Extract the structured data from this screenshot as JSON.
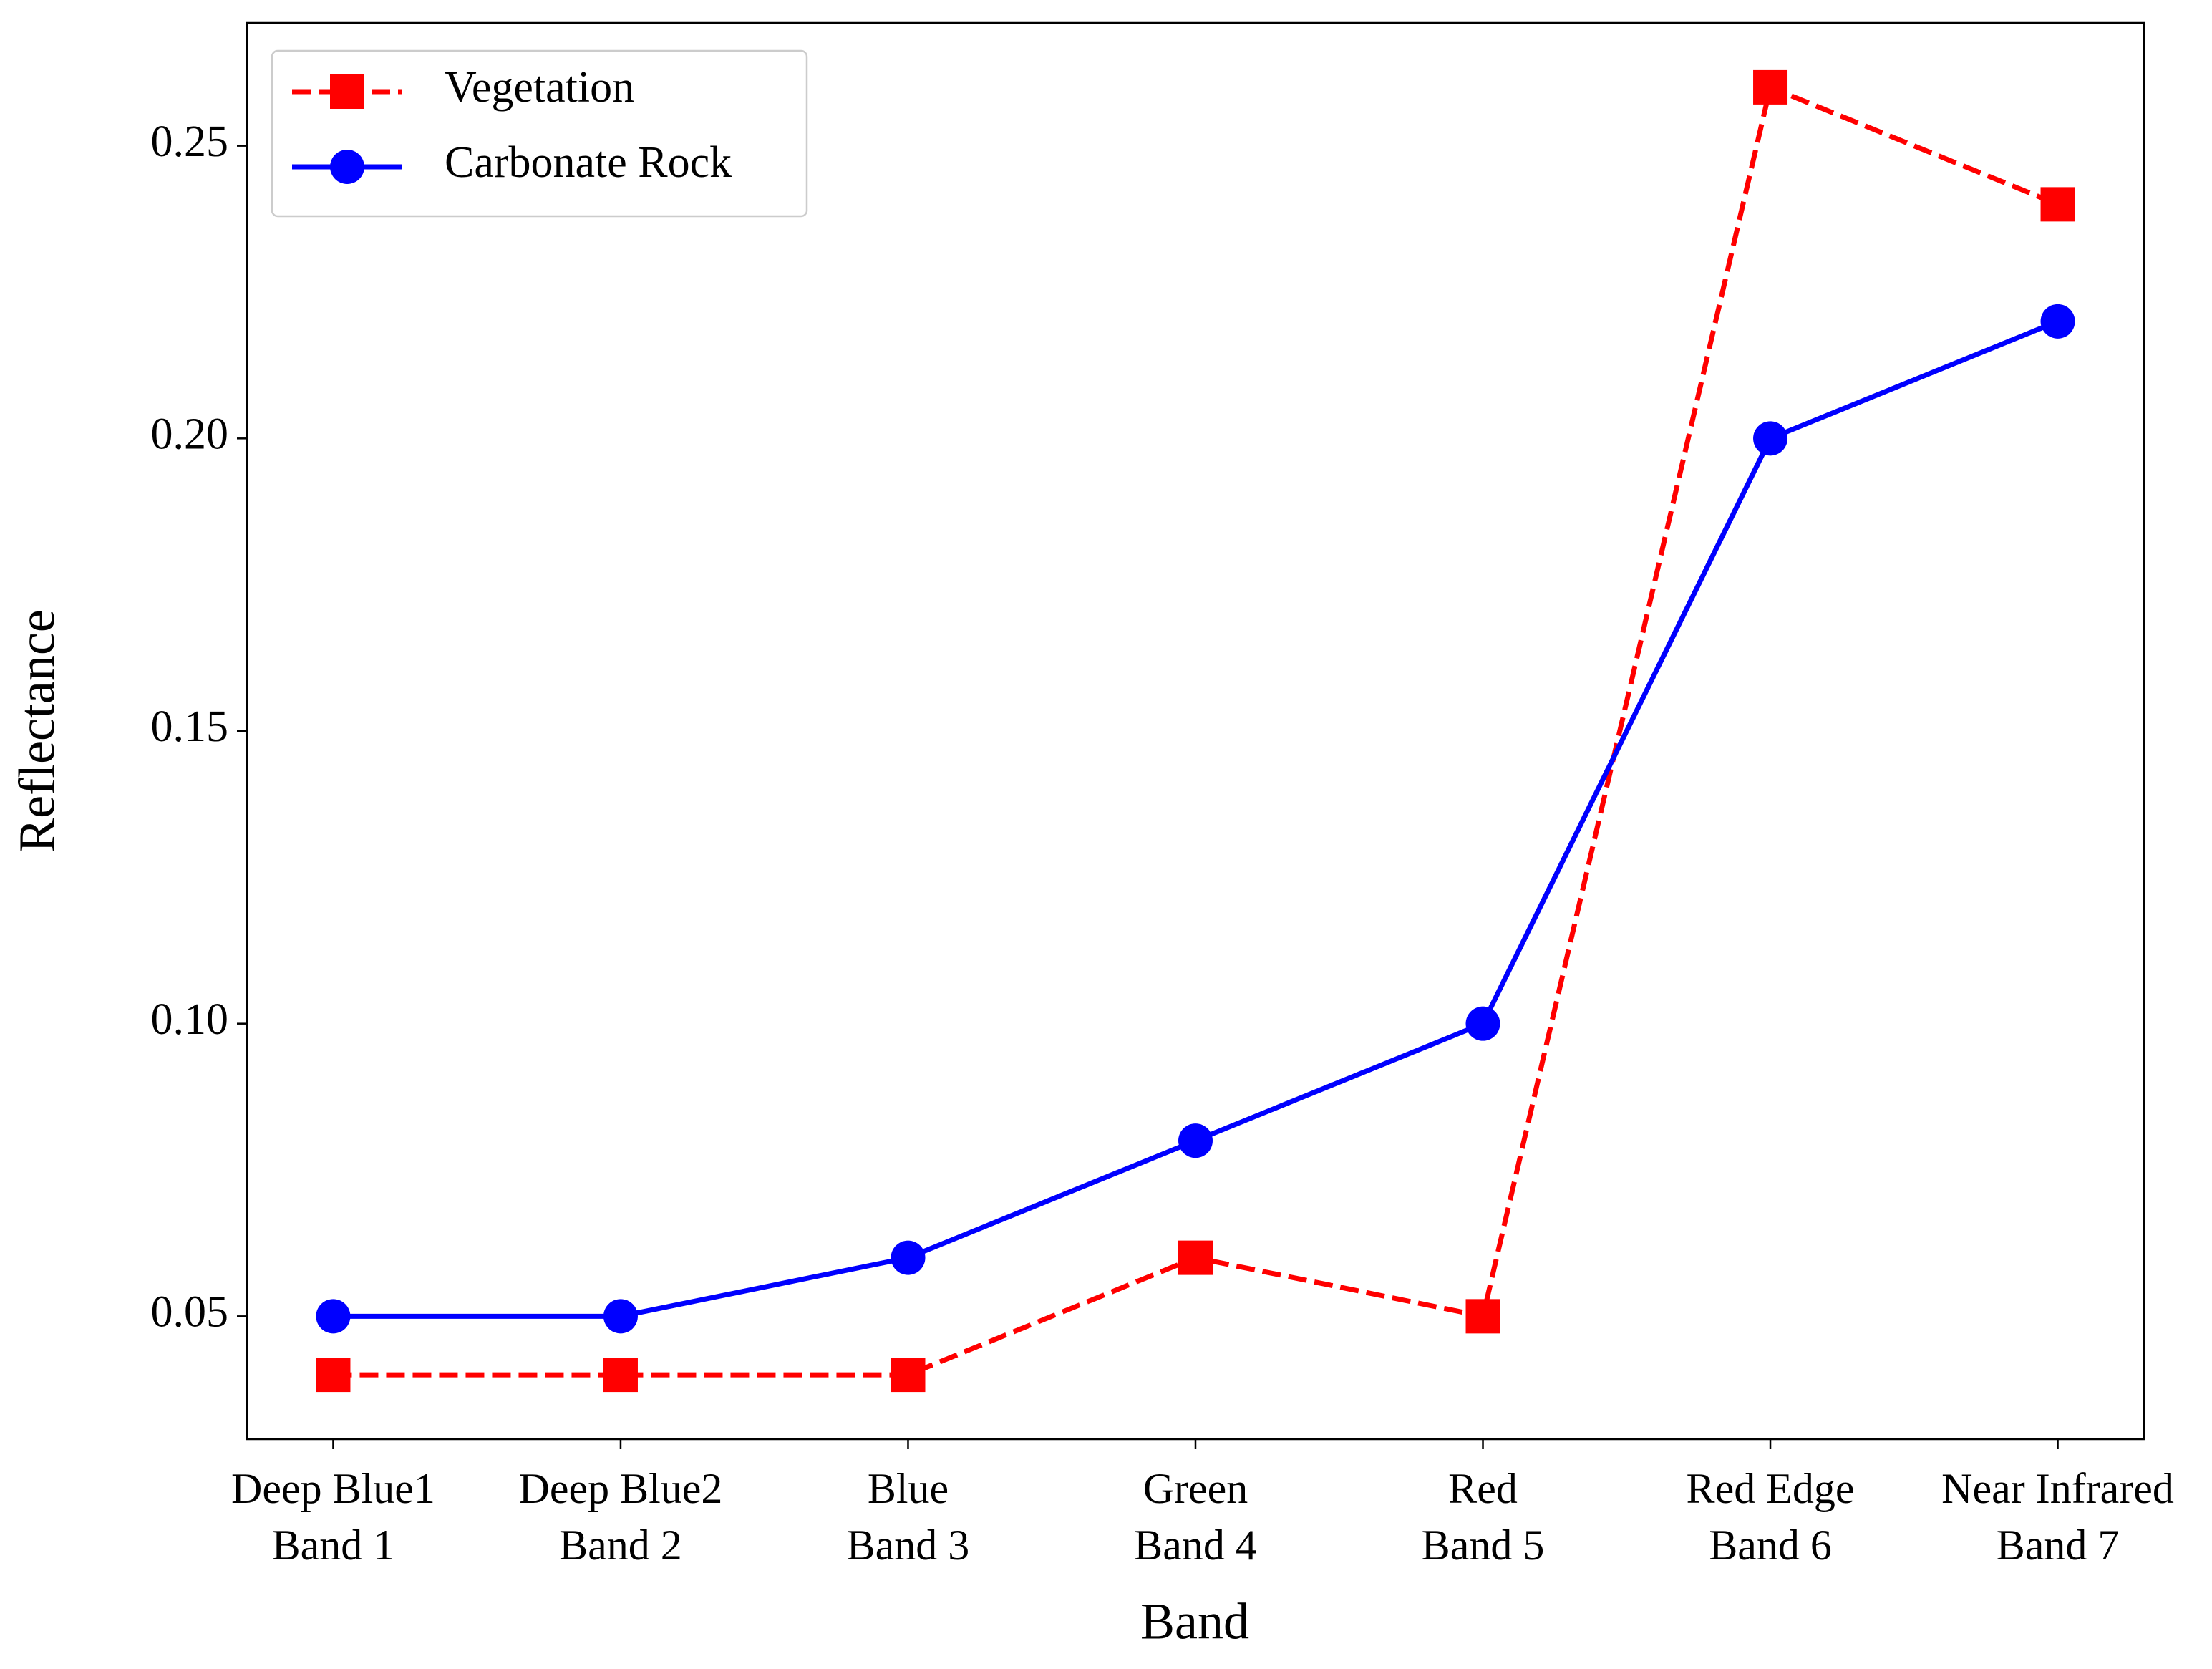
{
  "chart_data": {
    "type": "line",
    "x_label": "Band",
    "y_label": "Reflectance",
    "categories": [
      "Deep Blue1\nBand 1",
      "Deep Blue2\nBand 2",
      "Blue\nBand 3",
      "Green\nBand 4",
      "Red\nBand 5",
      "Red Edge\nBand 6",
      "Near Infrared\nBand 7"
    ],
    "series": [
      {
        "name": "Vegetation",
        "color": "#ff0000",
        "line_style": "dashed",
        "marker": "square",
        "values": [
          0.04,
          0.04,
          0.04,
          0.06,
          0.05,
          0.26,
          0.24
        ]
      },
      {
        "name": "Carbonate Rock",
        "color": "#0000ff",
        "line_style": "solid",
        "marker": "circle",
        "values": [
          0.05,
          0.05,
          0.06,
          0.08,
          0.1,
          0.2,
          0.22
        ]
      }
    ],
    "ylim": [
      0.029,
      0.271
    ],
    "yticks": [
      0.05,
      {
        "value": 0.1,
        "label": "0.10"
      },
      0.15,
      {
        "value": 0.2,
        "label": "0.20"
      },
      0.25
    ],
    "grid": false,
    "legend": "upper left"
  }
}
